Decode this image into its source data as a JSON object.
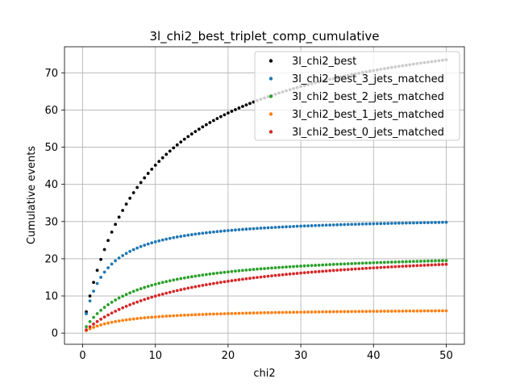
{
  "chart_data": {
    "type": "scatter",
    "title": "3l_chi2_best_triplet_comp_cumulative",
    "xlabel": "chi2",
    "ylabel": "Cumulative events",
    "xlim": [
      -2.5,
      52.5
    ],
    "ylim": [
      -3,
      77
    ],
    "xticks": [
      0,
      10,
      20,
      30,
      40,
      50
    ],
    "yticks": [
      0,
      10,
      20,
      30,
      40,
      50,
      60,
      70
    ],
    "grid": true,
    "legend_position": "top-right",
    "x_range": {
      "start": 0.5,
      "stop": 50,
      "step": 0.5
    },
    "series": [
      {
        "name": "3l_chi2_best",
        "color": "#000000",
        "y_end": 73.5,
        "curve": 12.0,
        "shape": 0.85
      },
      {
        "name": "3l_chi2_best_3_jets_matched",
        "color": "#1f77b4",
        "y_end": 29.8,
        "curve": 3.2,
        "shape": 0.9
      },
      {
        "name": "3l_chi2_best_2_jets_matched",
        "color": "#2ca02c",
        "y_end": 19.5,
        "curve": 8.0,
        "shape": 0.9
      },
      {
        "name": "3l_chi2_best_1_jets_matched",
        "color": "#ff7f0e",
        "y_end": 6.0,
        "curve": 6.0,
        "shape": 0.9
      },
      {
        "name": "3l_chi2_best_0_jets_matched",
        "color": "#d62728",
        "y_end": 18.5,
        "curve": 15.0,
        "shape": 0.95
      }
    ]
  }
}
